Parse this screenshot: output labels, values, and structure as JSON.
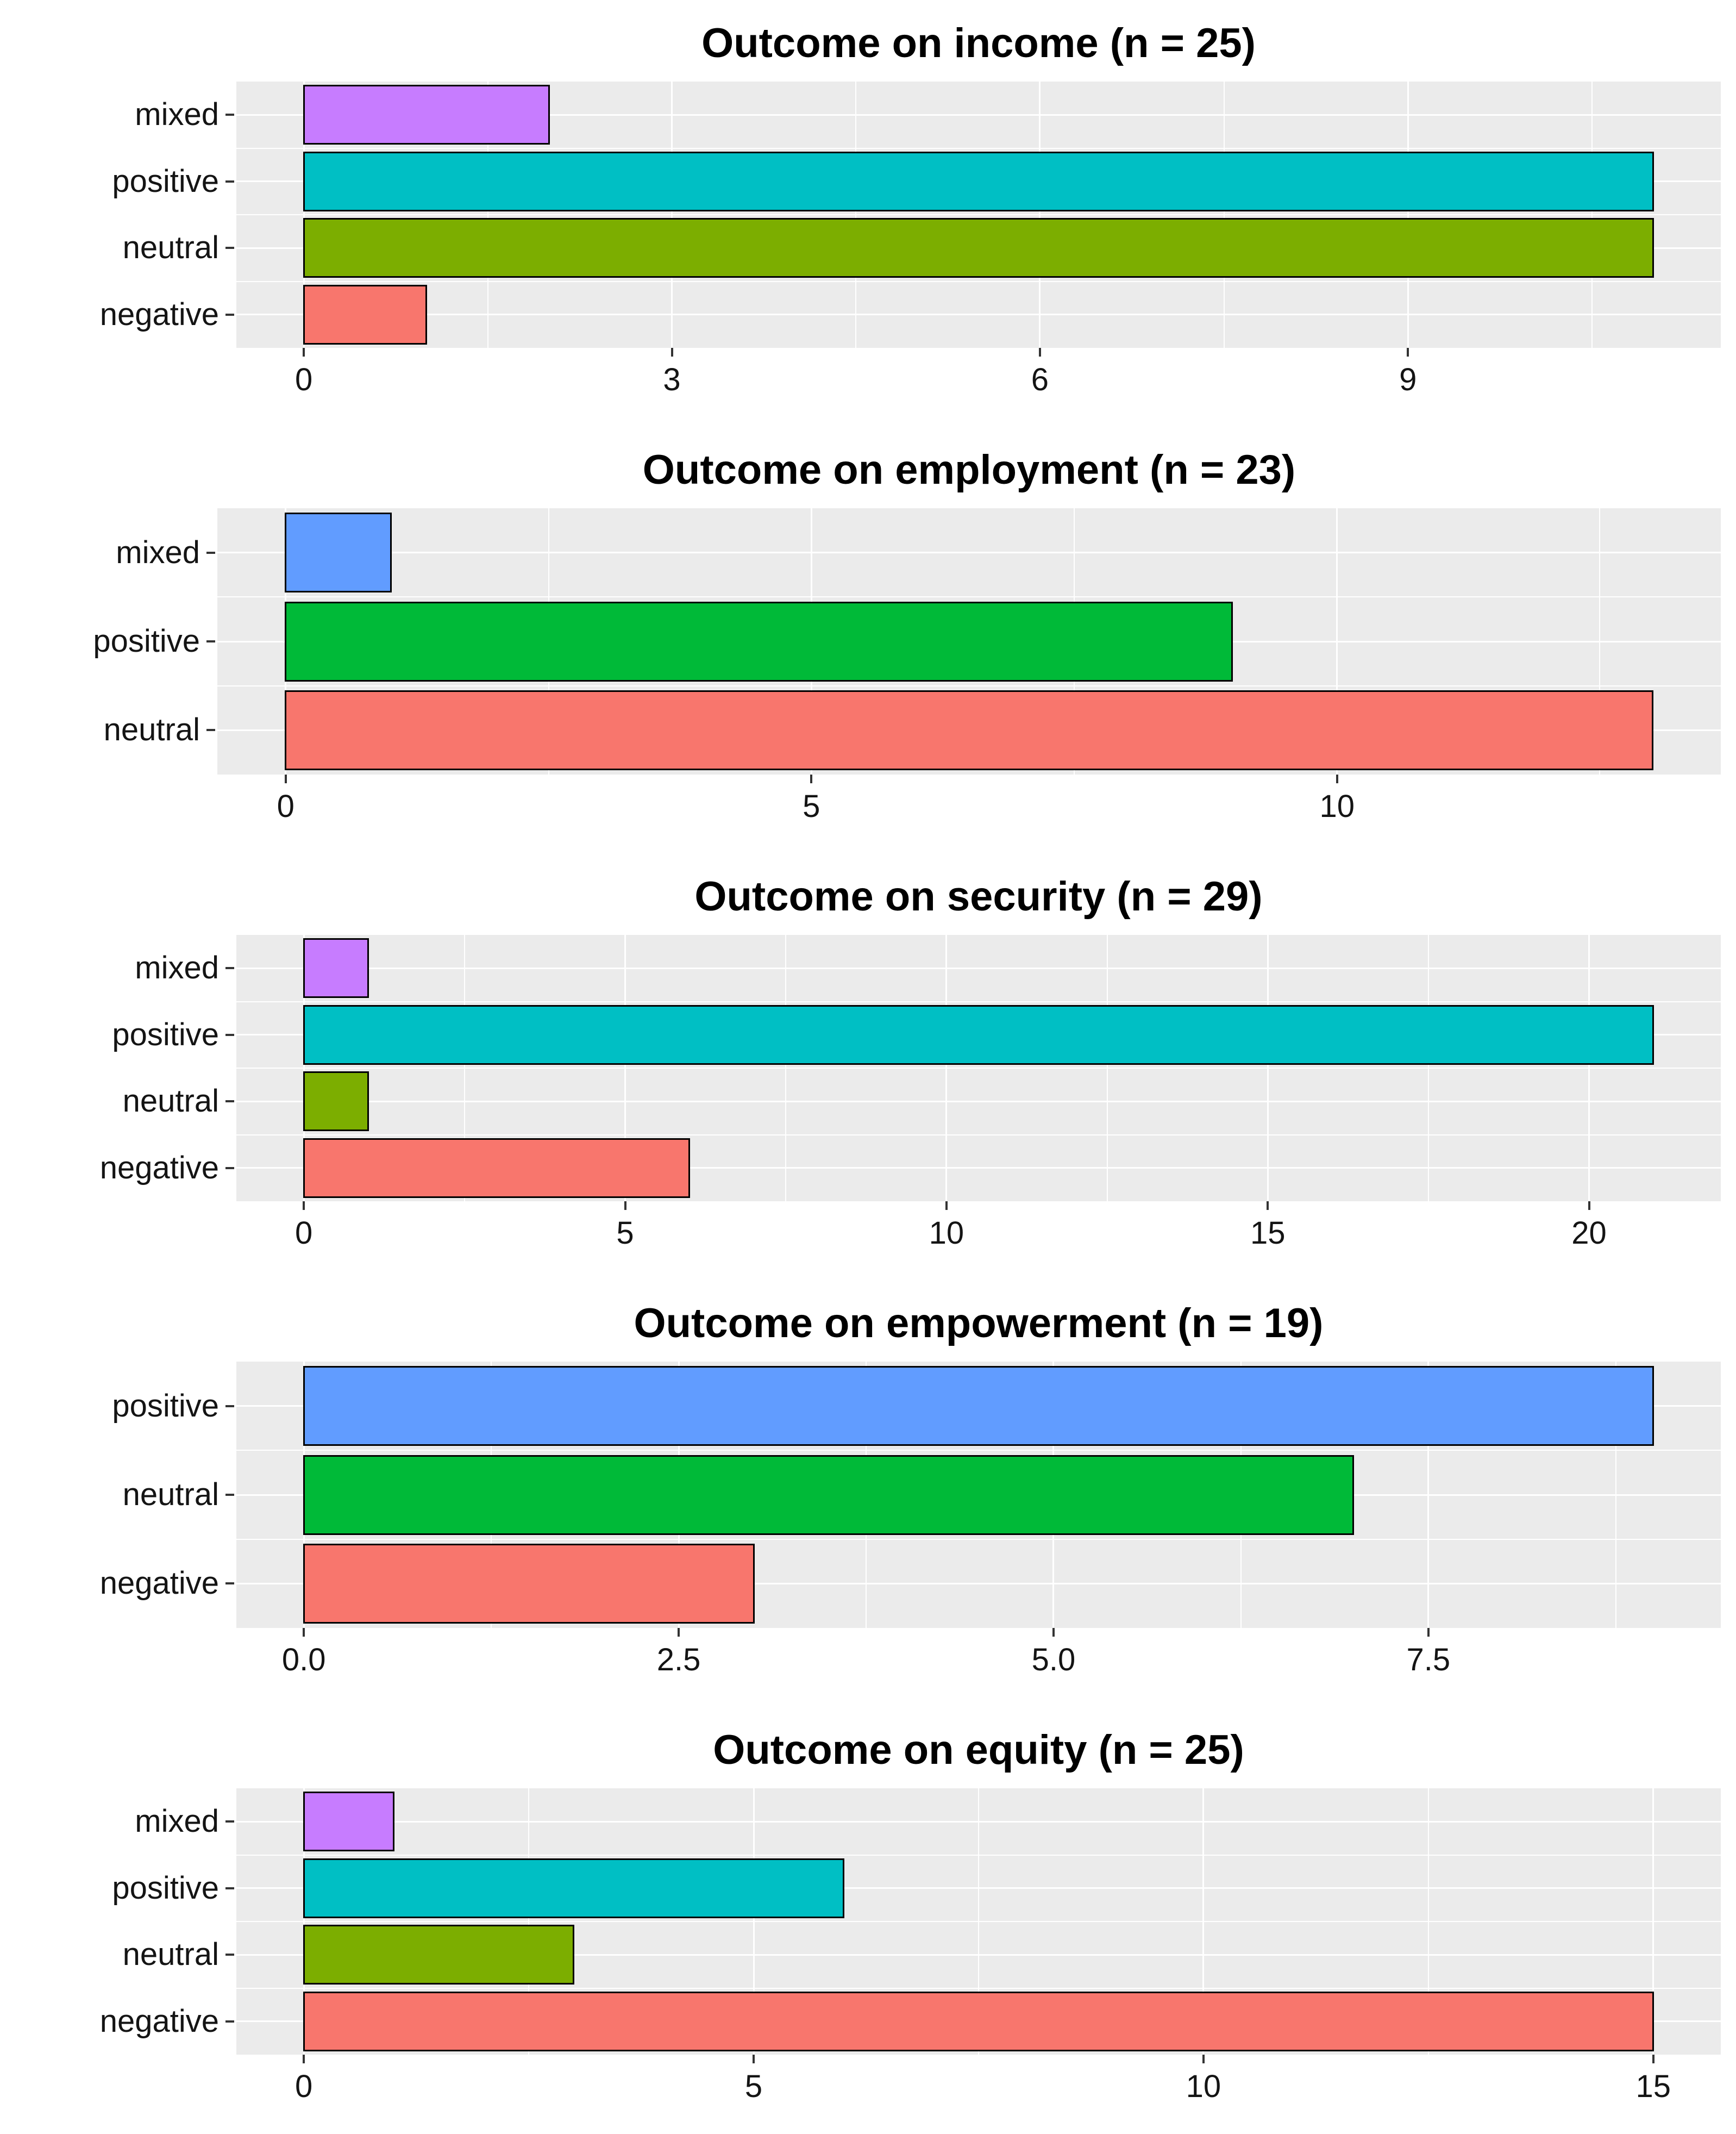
{
  "page": {
    "background": "#FFFFFF"
  },
  "colors": {
    "panel_background": "#EBEBEB",
    "gridline": "#FFFFFF",
    "bar_border": "#000000",
    "title_text": "#000000",
    "axis_text": "#141414",
    "tick_mark": "#333333"
  },
  "chart_data": [
    {
      "type": "bar",
      "orientation": "horizontal",
      "title": "Outcome on income (n = 25)",
      "sample_size": 25,
      "categories": [
        "mixed",
        "positive",
        "neutral",
        "negative"
      ],
      "values": [
        2,
        11,
        11,
        1
      ],
      "bar_colors": [
        "#C77CFF",
        "#00BFC4",
        "#7CAE00",
        "#F8766D"
      ],
      "xlim": [
        0,
        11
      ],
      "xticks": [
        0,
        3,
        6,
        9
      ],
      "xtick_labels": [
        "0",
        "3",
        "6",
        "9"
      ],
      "xlabel": "",
      "ylabel": "",
      "legend": "none",
      "grid": "major-and-minor"
    },
    {
      "type": "bar",
      "orientation": "horizontal",
      "title": "Outcome on employment (n = 23)",
      "sample_size": 23,
      "categories": [
        "mixed",
        "positive",
        "neutral"
      ],
      "values": [
        1,
        9,
        13
      ],
      "bar_colors": [
        "#619CFF",
        "#00BA38",
        "#F8766D"
      ],
      "xlim": [
        0,
        13
      ],
      "xticks": [
        0,
        5,
        10
      ],
      "xtick_labels": [
        "0",
        "5",
        "10"
      ],
      "xlabel": "",
      "ylabel": "",
      "legend": "none",
      "grid": "major-and-minor"
    },
    {
      "type": "bar",
      "orientation": "horizontal",
      "title": "Outcome on security (n = 29)",
      "sample_size": 29,
      "categories": [
        "mixed",
        "positive",
        "neutral",
        "negative"
      ],
      "values": [
        1,
        21,
        1,
        6
      ],
      "bar_colors": [
        "#C77CFF",
        "#00BFC4",
        "#7CAE00",
        "#F8766D"
      ],
      "xlim": [
        0,
        21
      ],
      "xticks": [
        0,
        5,
        10,
        15,
        20
      ],
      "xtick_labels": [
        "0",
        "5",
        "10",
        "15",
        "20"
      ],
      "xlabel": "",
      "ylabel": "",
      "legend": "none",
      "grid": "major-and-minor"
    },
    {
      "type": "bar",
      "orientation": "horizontal",
      "title": "Outcome on empowerment (n = 19)",
      "sample_size": 19,
      "categories": [
        "positive",
        "neutral",
        "negative"
      ],
      "values": [
        9,
        7,
        3
      ],
      "bar_colors": [
        "#619CFF",
        "#00BA38",
        "#F8766D"
      ],
      "xlim": [
        0,
        9
      ],
      "xticks": [
        0,
        2.5,
        5,
        7.5
      ],
      "xtick_labels": [
        "0.0",
        "2.5",
        "5.0",
        "7.5"
      ],
      "xlabel": "",
      "ylabel": "",
      "legend": "none",
      "grid": "major-and-minor"
    },
    {
      "type": "bar",
      "orientation": "horizontal",
      "title": "Outcome on equity (n = 25)",
      "sample_size": 25,
      "categories": [
        "mixed",
        "positive",
        "neutral",
        "negative"
      ],
      "values": [
        1,
        6,
        3,
        15
      ],
      "bar_colors": [
        "#C77CFF",
        "#00BFC4",
        "#7CAE00",
        "#F8766D"
      ],
      "xlim": [
        0,
        15
      ],
      "xticks": [
        0,
        5,
        10,
        15
      ],
      "xtick_labels": [
        "0",
        "5",
        "10",
        "15"
      ],
      "xlabel": "",
      "ylabel": "",
      "legend": "none",
      "grid": "major-and-minor"
    }
  ]
}
